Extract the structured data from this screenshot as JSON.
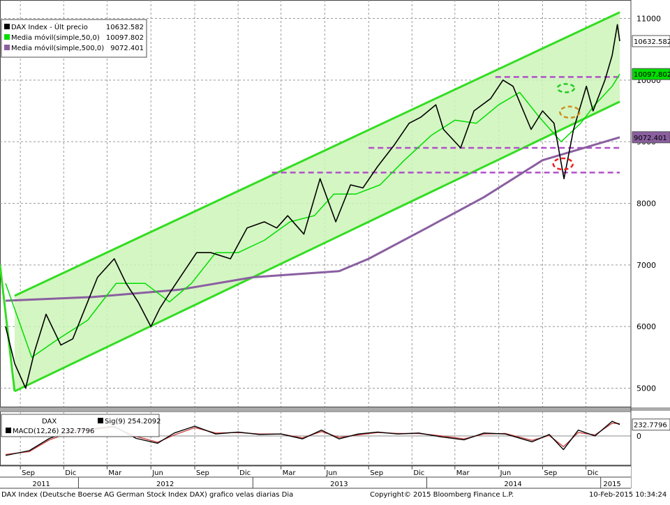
{
  "footer": {
    "description": "DAX Index (Deutsche Boerse AG German Stock Index DAX) grafico velas diarias  Dia",
    "copyright": "Copyright© 2015 Bloomberg Finance L.P.",
    "timestamp": "10-Feb-2015 10:34:24"
  },
  "colors": {
    "price": "#000000",
    "ma50": "#00dd00",
    "ma500": "#8a5fa0",
    "channel": "#33dd22",
    "channel_fill": "#ccf5b8",
    "support": "#b050c8",
    "annotation_green": "#22cc22",
    "annotation_orange": "#d09020",
    "annotation_red": "#ee2020",
    "macd": "#000000",
    "signal": "#cc4444"
  },
  "chart_data": [
    {
      "type": "line",
      "legend": [
        {
          "name": "DAX Index - Últ precio",
          "value": "10632.582"
        },
        {
          "name": "Media móvil(simple,50,0)",
          "value": "10097.802"
        },
        {
          "name": "Media móvil(simple,500,0)",
          "value": "9072.401"
        }
      ],
      "legend_position": "top-left",
      "grid": true,
      "ylim": [
        4700,
        11300
      ],
      "y_ticks": [
        5000,
        6000,
        7000,
        8000,
        9000,
        10000,
        11000
      ],
      "y_tick_labels": [
        "5000",
        "6000",
        "7000",
        "8000",
        "9000",
        "10000",
        "11000"
      ],
      "last_value_labels": [
        "10632.582",
        "10097.802",
        "9072.401"
      ],
      "x_range": [
        "2011-08-01",
        "2015-02-10"
      ],
      "x_ticks": [
        {
          "date": "2011-09-01",
          "label": "Sep"
        },
        {
          "date": "2011-12-01",
          "label": "Dic"
        },
        {
          "date": "2012-03-01",
          "label": "Mar"
        },
        {
          "date": "2012-06-01",
          "label": "Jun"
        },
        {
          "date": "2012-09-01",
          "label": "Sep"
        },
        {
          "date": "2012-12-01",
          "label": "Dic"
        },
        {
          "date": "2013-03-01",
          "label": "Mar"
        },
        {
          "date": "2013-06-01",
          "label": "Jun"
        },
        {
          "date": "2013-09-01",
          "label": "Sep"
        },
        {
          "date": "2013-12-01",
          "label": "Dic"
        },
        {
          "date": "2014-03-01",
          "label": "Mar"
        },
        {
          "date": "2014-06-01",
          "label": "Jun"
        },
        {
          "date": "2014-09-01",
          "label": "Sep"
        },
        {
          "date": "2014-12-01",
          "label": "Dic"
        }
      ],
      "year_labels": [
        {
          "date": "2011-10-15",
          "label": "2011"
        },
        {
          "date": "2012-07-01",
          "label": "2012"
        },
        {
          "date": "2013-07-01",
          "label": "2013"
        },
        {
          "date": "2014-07-01",
          "label": "2014"
        },
        {
          "date": "2015-01-25",
          "label": "2015"
        }
      ],
      "series": [
        {
          "name": "DAX Index - Últ precio",
          "x": [
            "2011-08-01",
            "2011-08-20",
            "2011-09-12",
            "2011-10-01",
            "2011-10-25",
            "2011-11-25",
            "2011-12-20",
            "2012-01-15",
            "2012-02-10",
            "2012-03-16",
            "2012-04-10",
            "2012-05-05",
            "2012-06-01",
            "2012-06-20",
            "2012-07-15",
            "2012-08-10",
            "2012-09-05",
            "2012-10-05",
            "2012-11-15",
            "2012-12-20",
            "2013-01-25",
            "2013-02-20",
            "2013-03-15",
            "2013-04-18",
            "2013-05-22",
            "2013-06-24",
            "2013-07-25",
            "2013-08-20",
            "2013-09-20",
            "2013-10-25",
            "2013-11-25",
            "2013-12-20",
            "2014-01-20",
            "2014-02-05",
            "2014-03-13",
            "2014-04-10",
            "2014-05-15",
            "2014-06-10",
            "2014-07-01",
            "2014-08-08",
            "2014-09-01",
            "2014-09-25",
            "2014-10-16",
            "2014-11-05",
            "2014-12-02",
            "2014-12-16",
            "2015-01-10",
            "2015-01-25",
            "2015-02-05",
            "2015-02-10"
          ],
          "values": [
            6000,
            5400,
            5000,
            5600,
            6200,
            5700,
            5800,
            6300,
            6800,
            7100,
            6700,
            6400,
            6000,
            6300,
            6600,
            6900,
            7200,
            7200,
            7100,
            7600,
            7700,
            7600,
            7800,
            7500,
            8400,
            7700,
            8300,
            8250,
            8600,
            8950,
            9300,
            9400,
            9600,
            9200,
            8900,
            9500,
            9700,
            10000,
            9900,
            9200,
            9500,
            9300,
            8400,
            9200,
            9900,
            9500,
            10000,
            10400,
            10900,
            10632.582
          ]
        },
        {
          "name": "Media móvil(simple,50,0)",
          "x": [
            "2011-08-01",
            "2011-09-25",
            "2011-11-20",
            "2012-01-20",
            "2012-03-20",
            "2012-05-20",
            "2012-07-10",
            "2012-08-25",
            "2012-10-15",
            "2012-12-01",
            "2013-01-25",
            "2013-03-20",
            "2013-05-10",
            "2013-06-20",
            "2013-08-05",
            "2013-09-25",
            "2013-11-15",
            "2014-01-10",
            "2014-03-01",
            "2014-04-15",
            "2014-06-01",
            "2014-07-15",
            "2014-08-25",
            "2014-10-10",
            "2014-11-20",
            "2014-12-20",
            "2015-01-25",
            "2015-02-10"
          ],
          "values": [
            6700,
            5500,
            5800,
            6100,
            6700,
            6700,
            6400,
            6700,
            7200,
            7200,
            7400,
            7700,
            7800,
            8150,
            8150,
            8300,
            8700,
            9100,
            9350,
            9300,
            9600,
            9800,
            9400,
            9000,
            9300,
            9600,
            9900,
            10097.802
          ]
        },
        {
          "name": "Media móvil(simple,500,0)",
          "x": [
            "2011-08-01",
            "2012-02-01",
            "2012-08-01",
            "2013-01-01",
            "2013-07-01",
            "2013-09-01",
            "2014-01-01",
            "2014-05-01",
            "2014-09-01",
            "2015-02-10"
          ],
          "values": [
            6420,
            6480,
            6600,
            6800,
            6900,
            7100,
            7600,
            8100,
            8700,
            9072.401
          ]
        }
      ],
      "channel": {
        "upper": {
          "x": [
            "2011-08-20",
            "2015-02-10"
          ],
          "values": [
            6500,
            11100
          ]
        },
        "lower": {
          "x": [
            "2011-08-20",
            "2015-02-10"
          ],
          "values": [
            4950,
            9650
          ]
        }
      },
      "support_levels": [
        {
          "x": [
            "2014-05-25",
            "2015-02-10"
          ],
          "value": 10050
        },
        {
          "x": [
            "2013-09-01",
            "2015-02-10"
          ],
          "value": 8900
        },
        {
          "x": [
            "2013-02-10",
            "2015-02-10"
          ],
          "value": 8500
        }
      ]
    },
    {
      "type": "line",
      "legend": [
        {
          "name": "DAX",
          "value": ""
        },
        {
          "name": "MACD(12,26)",
          "value": "232.7796"
        },
        {
          "name": "Sig(9)",
          "value": "254.2092"
        }
      ],
      "grid": true,
      "ylim": [
        -600,
        500
      ],
      "y_ticks": [
        0
      ],
      "y_tick_labels": [
        "0"
      ],
      "last_value_labels": [
        "232.7796"
      ],
      "series": [
        {
          "name": "MACD(12,26)",
          "x": [
            "2011-08-01",
            "2011-09-20",
            "2011-11-01",
            "2011-12-15",
            "2012-02-01",
            "2012-03-15",
            "2012-05-01",
            "2012-06-15",
            "2012-07-20",
            "2012-09-01",
            "2012-10-15",
            "2012-12-01",
            "2013-01-15",
            "2013-03-01",
            "2013-04-15",
            "2013-05-25",
            "2013-07-01",
            "2013-08-10",
            "2013-09-20",
            "2013-11-01",
            "2013-12-15",
            "2014-02-01",
            "2014-03-20",
            "2014-05-01",
            "2014-06-15",
            "2014-08-10",
            "2014-09-15",
            "2014-10-15",
            "2014-11-15",
            "2014-12-20",
            "2015-01-25",
            "2015-02-10"
          ],
          "values": [
            -400,
            -300,
            -50,
            100,
            150,
            200,
            -50,
            -150,
            60,
            200,
            40,
            80,
            30,
            40,
            -60,
            120,
            -60,
            40,
            80,
            40,
            60,
            -20,
            -80,
            60,
            40,
            -120,
            30,
            -280,
            120,
            0,
            300,
            232.7796
          ]
        },
        {
          "name": "Sig(9)",
          "x": [
            "2011-08-01",
            "2011-09-20",
            "2011-11-01",
            "2011-12-15",
            "2012-02-01",
            "2012-03-15",
            "2012-05-01",
            "2012-06-15",
            "2012-07-20",
            "2012-09-01",
            "2012-10-15",
            "2012-12-01",
            "2013-01-15",
            "2013-03-01",
            "2013-04-15",
            "2013-05-25",
            "2013-07-01",
            "2013-08-10",
            "2013-09-20",
            "2013-11-01",
            "2013-12-15",
            "2014-02-01",
            "2014-03-20",
            "2014-05-01",
            "2014-06-15",
            "2014-08-10",
            "2014-09-15",
            "2014-10-15",
            "2014-11-15",
            "2014-12-20",
            "2015-01-25",
            "2015-02-10"
          ],
          "values": [
            -380,
            -320,
            -80,
            70,
            130,
            180,
            -10,
            -130,
            20,
            170,
            60,
            70,
            40,
            40,
            -40,
            90,
            -30,
            20,
            70,
            50,
            50,
            0,
            -60,
            40,
            50,
            -90,
            10,
            -220,
            70,
            20,
            260,
            254.2092
          ]
        }
      ]
    }
  ]
}
